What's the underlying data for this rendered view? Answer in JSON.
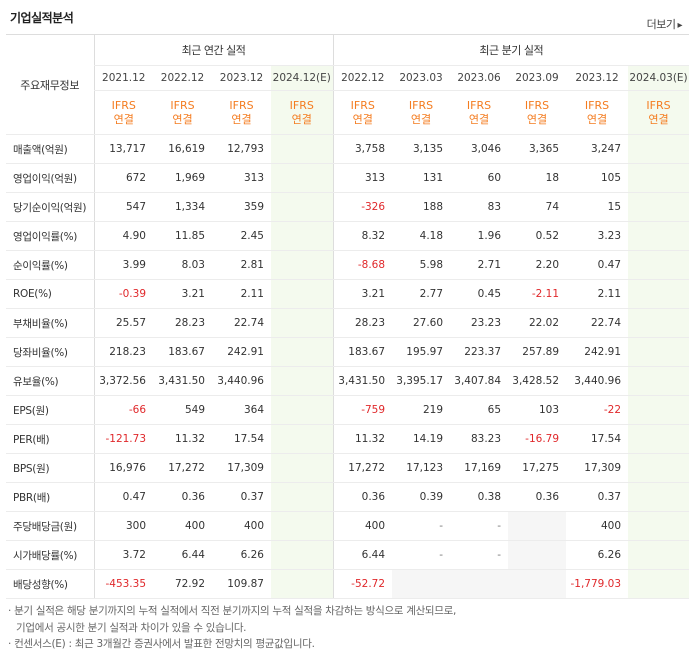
{
  "section_title": "기업실적분석",
  "more_label": "더보기",
  "more_arrow": "▸",
  "main_label": "주요재무정보",
  "group_annual": "최근 연간 실적",
  "group_quarter": "최근 분기 실적",
  "periods": [
    "2021.12",
    "2022.12",
    "2023.12",
    "2024.12(E)",
    "2022.12",
    "2023.03",
    "2023.06",
    "2023.09",
    "2023.12",
    "2024.03(E)"
  ],
  "ifrs_top": "IFRS",
  "ifrs_bottom": "연결",
  "rows": [
    {
      "label": "매출액(억원)",
      "cells": [
        "13,717",
        "16,619",
        "12,793",
        "",
        "3,758",
        "3,135",
        "3,046",
        "3,365",
        "3,247",
        ""
      ]
    },
    {
      "label": "영업이익(억원)",
      "cells": [
        "672",
        "1,969",
        "313",
        "",
        "313",
        "131",
        "60",
        "18",
        "105",
        ""
      ]
    },
    {
      "label": "당기순이익(억원)",
      "cells": [
        "547",
        "1,334",
        "359",
        "",
        "-326",
        "188",
        "83",
        "74",
        "15",
        ""
      ]
    },
    {
      "label": "영업이익률(%)",
      "cells": [
        "4.90",
        "11.85",
        "2.45",
        "",
        "8.32",
        "4.18",
        "1.96",
        "0.52",
        "3.23",
        ""
      ]
    },
    {
      "label": "순이익률(%)",
      "cells": [
        "3.99",
        "8.03",
        "2.81",
        "",
        "-8.68",
        "5.98",
        "2.71",
        "2.20",
        "0.47",
        ""
      ]
    },
    {
      "label": "ROE(%)",
      "cells": [
        "-0.39",
        "3.21",
        "2.11",
        "",
        "3.21",
        "2.77",
        "0.45",
        "-2.11",
        "2.11",
        ""
      ]
    },
    {
      "label": "부채비율(%)",
      "cells": [
        "25.57",
        "28.23",
        "22.74",
        "",
        "28.23",
        "27.60",
        "23.23",
        "22.02",
        "22.74",
        ""
      ]
    },
    {
      "label": "당좌비율(%)",
      "cells": [
        "218.23",
        "183.67",
        "242.91",
        "",
        "183.67",
        "195.97",
        "223.37",
        "257.89",
        "242.91",
        ""
      ]
    },
    {
      "label": "유보율(%)",
      "cells": [
        "3,372.56",
        "3,431.50",
        "3,440.96",
        "",
        "3,431.50",
        "3,395.17",
        "3,407.84",
        "3,428.52",
        "3,440.96",
        ""
      ]
    },
    {
      "label": "EPS(원)",
      "cells": [
        "-66",
        "549",
        "364",
        "",
        "-759",
        "219",
        "65",
        "103",
        "-22",
        ""
      ]
    },
    {
      "label": "PER(배)",
      "cells": [
        "-121.73",
        "11.32",
        "17.54",
        "",
        "11.32",
        "14.19",
        "83.23",
        "-16.79",
        "17.54",
        ""
      ]
    },
    {
      "label": "BPS(원)",
      "cells": [
        "16,976",
        "17,272",
        "17,309",
        "",
        "17,272",
        "17,123",
        "17,169",
        "17,275",
        "17,309",
        ""
      ]
    },
    {
      "label": "PBR(배)",
      "cells": [
        "0.47",
        "0.36",
        "0.37",
        "",
        "0.36",
        "0.39",
        "0.38",
        "0.36",
        "0.37",
        ""
      ]
    },
    {
      "label": "주당배당금(원)",
      "cells": [
        "300",
        "400",
        "400",
        "",
        "400",
        "-",
        "-",
        "",
        "400",
        ""
      ]
    },
    {
      "label": "시가배당률(%)",
      "cells": [
        "3.72",
        "6.44",
        "6.26",
        "",
        "6.44",
        "-",
        "-",
        "",
        "6.26",
        ""
      ]
    },
    {
      "label": "배당성향(%)",
      "cells": [
        "-453.35",
        "72.92",
        "109.87",
        "",
        "-52.72",
        "",
        "",
        "",
        "-1,779.03",
        ""
      ]
    }
  ],
  "notes": [
    "· 분기 실적은 해당 분기까지의 누적 실적에서 직전 분기까지의 누적 실적을 차감하는 방식으로 계산되므로,",
    "  기업에서 공시한 분기 실적과 차이가 있을 수 있습니다.",
    "· 컨센서스(E) : 최근 3개월간 증권사에서 발표한 전망치의 평균값입니다."
  ]
}
